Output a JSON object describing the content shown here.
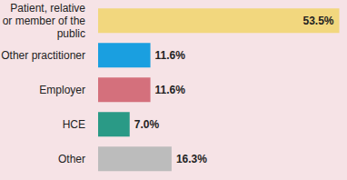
{
  "chart_data": {
    "type": "bar",
    "orientation": "horizontal",
    "categories": [
      "Patient, relative or member of the public",
      "Other practitioner",
      "Employer",
      "HCE",
      "Other"
    ],
    "values": [
      53.5,
      11.6,
      11.6,
      7.0,
      16.3
    ],
    "value_labels": [
      "53.5%",
      "11.6%",
      "11.6%",
      "7.0%",
      "16.3%"
    ],
    "colors": [
      "#f2d77e",
      "#1a9fe0",
      "#d4707c",
      "#2a9a86",
      "#bcbcbc"
    ],
    "xlim": [
      0,
      54
    ],
    "data_labels": true,
    "tick_labels": "y",
    "grid": false
  }
}
